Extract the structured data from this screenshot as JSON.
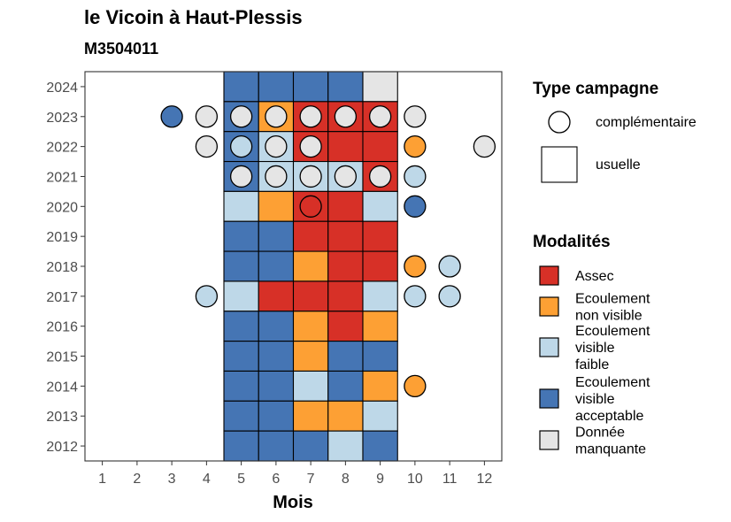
{
  "chart_data": {
    "type": "heatmap",
    "title": "le Vicoin à Haut-Plessis",
    "subtitle": "M3504011",
    "xlabel": "Mois",
    "ylabel": "",
    "x_ticks": [
      1,
      2,
      3,
      4,
      5,
      6,
      7,
      8,
      9,
      10,
      11,
      12
    ],
    "y_ticks": [
      2012,
      2013,
      2014,
      2015,
      2016,
      2017,
      2018,
      2019,
      2020,
      2021,
      2022,
      2023,
      2024
    ],
    "xlim": [
      0.5,
      12.5
    ],
    "ylim": [
      2011.5,
      2024.5
    ],
    "grid": false,
    "legend_placement": "right",
    "colors": {
      "Assec": "#D73027",
      "Ecoulement non visible": "#FDA034",
      "Ecoulement visible faible": "#BED8E8",
      "Ecoulement visible acceptable": "#4575B4",
      "Donnée manquante": "#E5E5E5"
    },
    "legend_type": {
      "title": "Type campagne",
      "items": [
        {
          "shape": "circle",
          "label": "complémentaire"
        },
        {
          "shape": "square",
          "label": "usuelle"
        }
      ]
    },
    "legend_mod": {
      "title": "Modalités",
      "items": [
        {
          "key": "Assec",
          "lines": [
            "Assec"
          ]
        },
        {
          "key": "Ecoulement non visible",
          "lines": [
            "Ecoulement",
            "non visible"
          ]
        },
        {
          "key": "Ecoulement visible faible",
          "lines": [
            "Ecoulement",
            "visible",
            "faible"
          ]
        },
        {
          "key": "Ecoulement visible acceptable",
          "lines": [
            "Ecoulement",
            "visible",
            "acceptable"
          ]
        },
        {
          "key": "Donnée manquante",
          "lines": [
            "Donnée",
            "manquante"
          ]
        }
      ]
    },
    "usuelle": [
      {
        "year": 2024,
        "month": 5,
        "value": "Ecoulement visible acceptable"
      },
      {
        "year": 2024,
        "month": 6,
        "value": "Ecoulement visible acceptable"
      },
      {
        "year": 2024,
        "month": 7,
        "value": "Ecoulement visible acceptable"
      },
      {
        "year": 2024,
        "month": 8,
        "value": "Ecoulement visible acceptable"
      },
      {
        "year": 2024,
        "month": 9,
        "value": "Donnée manquante"
      },
      {
        "year": 2023,
        "month": 5,
        "value": "Ecoulement visible acceptable"
      },
      {
        "year": 2023,
        "month": 6,
        "value": "Ecoulement non visible"
      },
      {
        "year": 2023,
        "month": 7,
        "value": "Assec"
      },
      {
        "year": 2023,
        "month": 8,
        "value": "Assec"
      },
      {
        "year": 2023,
        "month": 9,
        "value": "Assec"
      },
      {
        "year": 2022,
        "month": 5,
        "value": "Ecoulement visible acceptable"
      },
      {
        "year": 2022,
        "month": 6,
        "value": "Ecoulement visible faible"
      },
      {
        "year": 2022,
        "month": 7,
        "value": "Assec"
      },
      {
        "year": 2022,
        "month": 8,
        "value": "Assec"
      },
      {
        "year": 2022,
        "month": 9,
        "value": "Assec"
      },
      {
        "year": 2021,
        "month": 5,
        "value": "Ecoulement visible acceptable"
      },
      {
        "year": 2021,
        "month": 6,
        "value": "Ecoulement visible faible"
      },
      {
        "year": 2021,
        "month": 7,
        "value": "Ecoulement visible faible"
      },
      {
        "year": 2021,
        "month": 8,
        "value": "Ecoulement visible faible"
      },
      {
        "year": 2021,
        "month": 9,
        "value": "Assec"
      },
      {
        "year": 2020,
        "month": 5,
        "value": "Ecoulement visible faible"
      },
      {
        "year": 2020,
        "month": 6,
        "value": "Ecoulement non visible"
      },
      {
        "year": 2020,
        "month": 7,
        "value": "Assec"
      },
      {
        "year": 2020,
        "month": 8,
        "value": "Assec"
      },
      {
        "year": 2020,
        "month": 9,
        "value": "Ecoulement visible faible"
      },
      {
        "year": 2019,
        "month": 5,
        "value": "Ecoulement visible acceptable"
      },
      {
        "year": 2019,
        "month": 6,
        "value": "Ecoulement visible acceptable"
      },
      {
        "year": 2019,
        "month": 7,
        "value": "Assec"
      },
      {
        "year": 2019,
        "month": 8,
        "value": "Assec"
      },
      {
        "year": 2019,
        "month": 9,
        "value": "Assec"
      },
      {
        "year": 2018,
        "month": 5,
        "value": "Ecoulement visible acceptable"
      },
      {
        "year": 2018,
        "month": 6,
        "value": "Ecoulement visible acceptable"
      },
      {
        "year": 2018,
        "month": 7,
        "value": "Ecoulement non visible"
      },
      {
        "year": 2018,
        "month": 8,
        "value": "Assec"
      },
      {
        "year": 2018,
        "month": 9,
        "value": "Assec"
      },
      {
        "year": 2017,
        "month": 5,
        "value": "Ecoulement visible faible"
      },
      {
        "year": 2017,
        "month": 6,
        "value": "Assec"
      },
      {
        "year": 2017,
        "month": 7,
        "value": "Assec"
      },
      {
        "year": 2017,
        "month": 8,
        "value": "Assec"
      },
      {
        "year": 2017,
        "month": 9,
        "value": "Ecoulement visible faible"
      },
      {
        "year": 2016,
        "month": 5,
        "value": "Ecoulement visible acceptable"
      },
      {
        "year": 2016,
        "month": 6,
        "value": "Ecoulement visible acceptable"
      },
      {
        "year": 2016,
        "month": 7,
        "value": "Ecoulement non visible"
      },
      {
        "year": 2016,
        "month": 8,
        "value": "Assec"
      },
      {
        "year": 2016,
        "month": 9,
        "value": "Ecoulement non visible"
      },
      {
        "year": 2015,
        "month": 5,
        "value": "Ecoulement visible acceptable"
      },
      {
        "year": 2015,
        "month": 6,
        "value": "Ecoulement visible acceptable"
      },
      {
        "year": 2015,
        "month": 7,
        "value": "Ecoulement non visible"
      },
      {
        "year": 2015,
        "month": 8,
        "value": "Ecoulement visible acceptable"
      },
      {
        "year": 2015,
        "month": 9,
        "value": "Ecoulement visible acceptable"
      },
      {
        "year": 2014,
        "month": 5,
        "value": "Ecoulement visible acceptable"
      },
      {
        "year": 2014,
        "month": 6,
        "value": "Ecoulement visible acceptable"
      },
      {
        "year": 2014,
        "month": 7,
        "value": "Ecoulement visible faible"
      },
      {
        "year": 2014,
        "month": 8,
        "value": "Ecoulement visible acceptable"
      },
      {
        "year": 2014,
        "month": 9,
        "value": "Ecoulement non visible"
      },
      {
        "year": 2013,
        "month": 5,
        "value": "Ecoulement visible acceptable"
      },
      {
        "year": 2013,
        "month": 6,
        "value": "Ecoulement visible acceptable"
      },
      {
        "year": 2013,
        "month": 7,
        "value": "Ecoulement non visible"
      },
      {
        "year": 2013,
        "month": 8,
        "value": "Ecoulement non visible"
      },
      {
        "year": 2013,
        "month": 9,
        "value": "Ecoulement visible faible"
      },
      {
        "year": 2012,
        "month": 5,
        "value": "Ecoulement visible acceptable"
      },
      {
        "year": 2012,
        "month": 6,
        "value": "Ecoulement visible acceptable"
      },
      {
        "year": 2012,
        "month": 7,
        "value": "Ecoulement visible acceptable"
      },
      {
        "year": 2012,
        "month": 8,
        "value": "Ecoulement visible faible"
      },
      {
        "year": 2012,
        "month": 9,
        "value": "Ecoulement visible acceptable"
      }
    ],
    "complementaire": [
      {
        "year": 2023,
        "month": 3,
        "value": "Ecoulement visible acceptable"
      },
      {
        "year": 2023,
        "month": 4,
        "value": "Donnée manquante"
      },
      {
        "year": 2023,
        "month": 5,
        "value": "Donnée manquante"
      },
      {
        "year": 2023,
        "month": 6,
        "value": "Donnée manquante"
      },
      {
        "year": 2023,
        "month": 7,
        "value": "Donnée manquante"
      },
      {
        "year": 2023,
        "month": 8,
        "value": "Donnée manquante"
      },
      {
        "year": 2023,
        "month": 9,
        "value": "Donnée manquante"
      },
      {
        "year": 2023,
        "month": 10,
        "value": "Donnée manquante"
      },
      {
        "year": 2022,
        "month": 4,
        "value": "Donnée manquante"
      },
      {
        "year": 2022,
        "month": 5,
        "value": "Ecoulement visible faible"
      },
      {
        "year": 2022,
        "month": 6,
        "value": "Donnée manquante"
      },
      {
        "year": 2022,
        "month": 7,
        "value": "Donnée manquante"
      },
      {
        "year": 2022,
        "month": 10,
        "value": "Ecoulement non visible"
      },
      {
        "year": 2022,
        "month": 12,
        "value": "Donnée manquante"
      },
      {
        "year": 2021,
        "month": 5,
        "value": "Donnée manquante"
      },
      {
        "year": 2021,
        "month": 6,
        "value": "Donnée manquante"
      },
      {
        "year": 2021,
        "month": 7,
        "value": "Donnée manquante"
      },
      {
        "year": 2021,
        "month": 8,
        "value": "Donnée manquante"
      },
      {
        "year": 2021,
        "month": 9,
        "value": "Donnée manquante"
      },
      {
        "year": 2021,
        "month": 10,
        "value": "Ecoulement visible faible"
      },
      {
        "year": 2020,
        "month": 7,
        "value": "Assec"
      },
      {
        "year": 2020,
        "month": 10,
        "value": "Ecoulement visible acceptable"
      },
      {
        "year": 2018,
        "month": 10,
        "value": "Ecoulement non visible"
      },
      {
        "year": 2018,
        "month": 11,
        "value": "Ecoulement visible faible"
      },
      {
        "year": 2017,
        "month": 4,
        "value": "Ecoulement visible faible"
      },
      {
        "year": 2017,
        "month": 10,
        "value": "Ecoulement visible faible"
      },
      {
        "year": 2017,
        "month": 11,
        "value": "Ecoulement visible faible"
      },
      {
        "year": 2014,
        "month": 10,
        "value": "Ecoulement non visible"
      }
    ]
  }
}
